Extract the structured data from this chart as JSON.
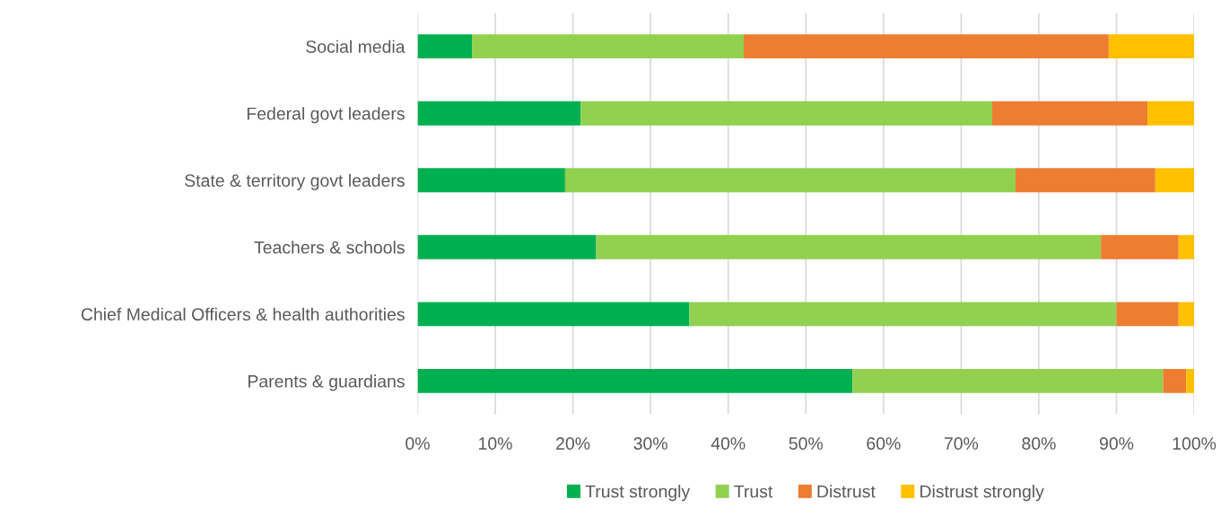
{
  "chart_data": {
    "type": "bar",
    "orientation": "horizontal",
    "stacked": true,
    "categories": [
      "Social media",
      "Federal govt leaders",
      "State & territory govt leaders",
      "Teachers & schools",
      "Chief Medical Officers & health authorities",
      "Parents & guardians"
    ],
    "series": [
      {
        "name": "Trust strongly",
        "color": "#00b050",
        "values": [
          7,
          21,
          19,
          23,
          35,
          56
        ]
      },
      {
        "name": "Trust",
        "color": "#92d050",
        "values": [
          35,
          53,
          58,
          65,
          55,
          40
        ]
      },
      {
        "name": "Distrust",
        "color": "#ed7d31",
        "values": [
          47,
          20,
          18,
          10,
          8,
          3
        ]
      },
      {
        "name": "Distrust strongly",
        "color": "#ffc000",
        "values": [
          11,
          6,
          5,
          2,
          2,
          1
        ]
      }
    ],
    "xlim": [
      0,
      100
    ],
    "xticks": [
      {
        "value": 0,
        "label": "0%"
      },
      {
        "value": 10,
        "label": "10%"
      },
      {
        "value": 20,
        "label": "20%"
      },
      {
        "value": 30,
        "label": "30%"
      },
      {
        "value": 40,
        "label": "40%"
      },
      {
        "value": 50,
        "label": "50%"
      },
      {
        "value": 60,
        "label": "60%"
      },
      {
        "value": 70,
        "label": "70%"
      },
      {
        "value": 80,
        "label": "80%"
      },
      {
        "value": 90,
        "label": "90%"
      },
      {
        "value": 100,
        "label": "100%"
      }
    ],
    "grid": "x",
    "legend": "bottom"
  }
}
